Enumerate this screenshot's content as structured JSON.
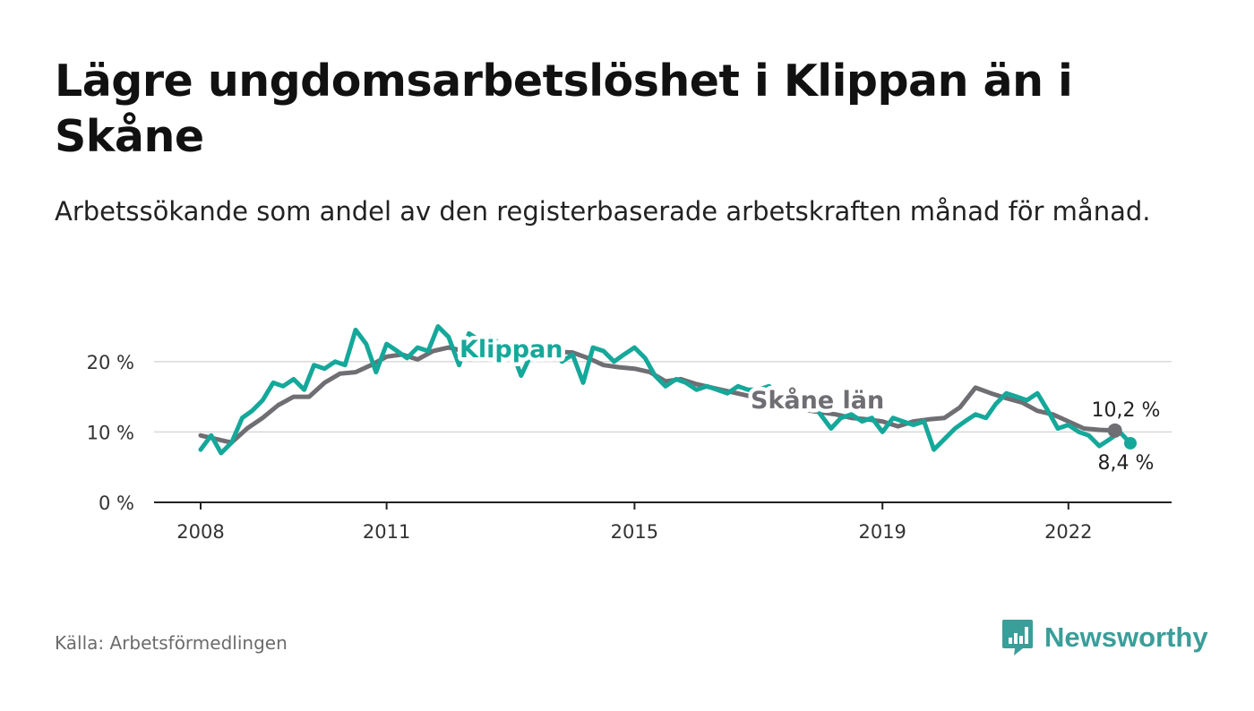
{
  "title": "Lägre ungdomsarbetslöshet i Klippan än i Skåne",
  "subtitle": "Arbetssökande som andel av den registerbaserade arbetskraften månad för månad.",
  "source": "Källa: Arbetsförmedlingen",
  "brand": {
    "name": "Newsworthy",
    "icon": "newsworthy-logo-icon",
    "color": "#3a9e99"
  },
  "chart_data": {
    "type": "line",
    "title": "Lägre ungdomsarbetslöshet i Klippan än i Skåne",
    "ylim": [
      0,
      25
    ],
    "ylabel": "",
    "xlabel": "",
    "yticks": [
      0,
      10,
      20
    ],
    "ytick_labels": [
      "0 %",
      "10 %",
      "20 %"
    ],
    "xticks": [
      2008,
      2011,
      2015,
      2019,
      2022
    ],
    "xtick_labels": [
      "2008",
      "2011",
      "2015",
      "2019",
      "2022"
    ],
    "grid": true,
    "series": [
      {
        "name": "Skåne län",
        "color": "#6e6e73",
        "end_label": "10,2 %",
        "points": [
          [
            2008.0,
            9.5
          ],
          [
            2008.25,
            9.0
          ],
          [
            2008.5,
            8.5
          ],
          [
            2008.75,
            10.5
          ],
          [
            2009.0,
            12.0
          ],
          [
            2009.25,
            13.8
          ],
          [
            2009.5,
            15.0
          ],
          [
            2009.75,
            15.0
          ],
          [
            2010.0,
            17.0
          ],
          [
            2010.25,
            18.3
          ],
          [
            2010.5,
            18.5
          ],
          [
            2010.75,
            19.5
          ],
          [
            2011.0,
            20.7
          ],
          [
            2011.25,
            21.0
          ],
          [
            2011.5,
            20.3
          ],
          [
            2011.75,
            21.5
          ],
          [
            2012.0,
            22.0
          ],
          [
            2012.25,
            21.5
          ],
          [
            2012.5,
            21.2
          ],
          [
            2013.0,
            21.0
          ],
          [
            2013.5,
            21.5
          ],
          [
            2014.0,
            21.3
          ],
          [
            2014.25,
            20.5
          ],
          [
            2014.5,
            19.5
          ],
          [
            2014.75,
            19.2
          ],
          [
            2015.0,
            19.0
          ],
          [
            2015.25,
            18.5
          ],
          [
            2015.5,
            17.2
          ],
          [
            2015.75,
            17.5
          ],
          [
            2016.0,
            16.8
          ],
          [
            2016.25,
            16.3
          ],
          [
            2016.5,
            15.8
          ],
          [
            2016.75,
            15.3
          ],
          [
            2017.0,
            14.8
          ],
          [
            2017.5,
            13.5
          ],
          [
            2018.0,
            12.8
          ],
          [
            2018.25,
            12.5
          ],
          [
            2018.5,
            12.0
          ],
          [
            2018.75,
            11.8
          ],
          [
            2019.0,
            11.5
          ],
          [
            2019.25,
            10.8
          ],
          [
            2019.5,
            11.5
          ],
          [
            2019.75,
            11.8
          ],
          [
            2020.0,
            12.0
          ],
          [
            2020.25,
            13.5
          ],
          [
            2020.5,
            16.3
          ],
          [
            2020.75,
            15.5
          ],
          [
            2021.0,
            14.8
          ],
          [
            2021.25,
            14.2
          ],
          [
            2021.5,
            13.0
          ],
          [
            2021.75,
            12.5
          ],
          [
            2022.0,
            11.5
          ],
          [
            2022.25,
            10.5
          ],
          [
            2022.5,
            10.3
          ],
          [
            2022.75,
            10.2
          ]
        ]
      },
      {
        "name": "Klippan",
        "color": "#15a89a",
        "end_label": "8,4 %",
        "points": [
          [
            2008.0,
            7.5
          ],
          [
            2008.17,
            9.5
          ],
          [
            2008.33,
            7.0
          ],
          [
            2008.5,
            8.5
          ],
          [
            2008.67,
            12.0
          ],
          [
            2008.83,
            13.0
          ],
          [
            2009.0,
            14.5
          ],
          [
            2009.17,
            17.0
          ],
          [
            2009.33,
            16.5
          ],
          [
            2009.5,
            17.5
          ],
          [
            2009.67,
            16.0
          ],
          [
            2009.83,
            19.5
          ],
          [
            2010.0,
            19.0
          ],
          [
            2010.17,
            20.0
          ],
          [
            2010.33,
            19.5
          ],
          [
            2010.5,
            24.5
          ],
          [
            2010.67,
            22.5
          ],
          [
            2010.83,
            18.5
          ],
          [
            2011.0,
            22.5
          ],
          [
            2011.17,
            21.5
          ],
          [
            2011.33,
            20.5
          ],
          [
            2011.5,
            22.0
          ],
          [
            2011.67,
            21.5
          ],
          [
            2011.83,
            25.0
          ],
          [
            2012.0,
            23.5
          ],
          [
            2012.17,
            19.5
          ],
          [
            2012.33,
            24.0
          ],
          [
            2012.5,
            23.0
          ],
          [
            2012.67,
            23.5
          ],
          [
            2012.83,
            22.5
          ],
          [
            2013.0,
            22.0
          ],
          [
            2013.17,
            18.0
          ],
          [
            2013.33,
            21.0
          ],
          [
            2013.5,
            20.5
          ],
          [
            2013.67,
            22.0
          ],
          [
            2013.83,
            20.0
          ],
          [
            2014.0,
            21.0
          ],
          [
            2014.17,
            17.0
          ],
          [
            2014.33,
            22.0
          ],
          [
            2014.5,
            21.5
          ],
          [
            2014.67,
            20.0
          ],
          [
            2014.83,
            21.0
          ],
          [
            2015.0,
            22.0
          ],
          [
            2015.17,
            20.5
          ],
          [
            2015.33,
            18.0
          ],
          [
            2015.5,
            16.5
          ],
          [
            2015.67,
            17.5
          ],
          [
            2015.83,
            17.0
          ],
          [
            2016.0,
            16.0
          ],
          [
            2016.17,
            16.5
          ],
          [
            2016.33,
            16.0
          ],
          [
            2016.5,
            15.5
          ],
          [
            2016.67,
            16.5
          ],
          [
            2016.83,
            16.0
          ],
          [
            2017.0,
            16.0
          ],
          [
            2017.17,
            16.5
          ],
          [
            2017.33,
            14.0
          ],
          [
            2017.5,
            15.5
          ],
          [
            2017.67,
            14.5
          ],
          [
            2017.83,
            15.0
          ],
          [
            2018.0,
            12.5
          ],
          [
            2018.17,
            10.5
          ],
          [
            2018.33,
            12.0
          ],
          [
            2018.5,
            12.5
          ],
          [
            2018.67,
            11.5
          ],
          [
            2018.83,
            12.0
          ],
          [
            2019.0,
            10.0
          ],
          [
            2019.17,
            12.0
          ],
          [
            2019.33,
            11.5
          ],
          [
            2019.5,
            11.0
          ],
          [
            2019.67,
            11.5
          ],
          [
            2019.83,
            7.5
          ],
          [
            2020.0,
            9.0
          ],
          [
            2020.17,
            10.5
          ],
          [
            2020.33,
            11.5
          ],
          [
            2020.5,
            12.5
          ],
          [
            2020.67,
            12.0
          ],
          [
            2020.83,
            14.0
          ],
          [
            2021.0,
            15.5
          ],
          [
            2021.17,
            15.0
          ],
          [
            2021.33,
            14.5
          ],
          [
            2021.5,
            15.5
          ],
          [
            2021.67,
            13.0
          ],
          [
            2021.83,
            10.5
          ],
          [
            2022.0,
            11.0
          ],
          [
            2022.17,
            10.0
          ],
          [
            2022.33,
            9.5
          ],
          [
            2022.5,
            8.0
          ],
          [
            2022.67,
            9.0
          ],
          [
            2022.83,
            10.0
          ],
          [
            2023.0,
            8.4
          ]
        ]
      }
    ]
  }
}
